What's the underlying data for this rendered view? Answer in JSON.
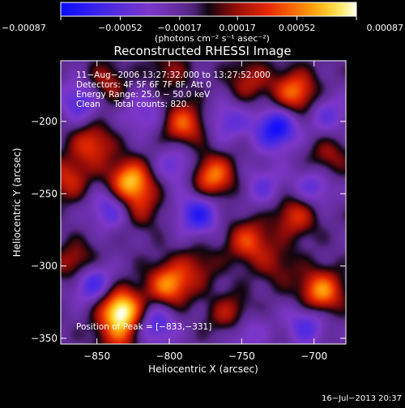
{
  "chart_data": {
    "type": "heatmap",
    "title": "Reconstructed RHESSI Image",
    "xlabel": "Heliocentric X (arcsec)",
    "ylabel": "Heliocentric Y (arcsec)",
    "xlim": [
      -875,
      -678
    ],
    "ylim": [
      -354,
      -158
    ],
    "x_ticks": [
      {
        "value": -850,
        "label": "−850"
      },
      {
        "value": -800,
        "label": "−800"
      },
      {
        "value": -750,
        "label": "−750"
      },
      {
        "value": -700,
        "label": "−700"
      }
    ],
    "y_ticks": [
      {
        "value": -200,
        "label": "−200"
      },
      {
        "value": -250,
        "label": "−250"
      },
      {
        "value": -300,
        "label": "−300"
      },
      {
        "value": -350,
        "label": "−350"
      }
    ],
    "colorbar": {
      "range": [
        -0.00087,
        0.00087
      ],
      "tick_values": [
        -0.00087,
        -0.00052,
        -0.00017,
        0.00017,
        0.00052,
        0.00087
      ],
      "tick_labels": [
        "−0.00087",
        "−0.00052",
        "−0.00017",
        "0.00017",
        "0.00052",
        "0.00087"
      ],
      "unit_label": "(photons cm⁻² s⁻¹ asec⁻²)"
    },
    "annotations": [
      "11−Aug−2006 13:27:32.000 to 13:27:52.000",
      "Detectors: 4F 5F 6F 7F 8F, Att 0",
      "Energy Range: 25.0 − 50.0 keV",
      "Clean     Total counts: 820."
    ],
    "peak_label": "Position of Peak = [−833,−331]",
    "peak": {
      "x": -833,
      "y": -331,
      "value": 0.00087
    },
    "sources": [
      {
        "x": -833,
        "y": -331,
        "value": 0.00087
      },
      {
        "x": -827,
        "y": -242,
        "value": 0.0007
      },
      {
        "x": -800,
        "y": -313,
        "value": 0.0006
      },
      {
        "x": -695,
        "y": -318,
        "value": 0.00062
      },
      {
        "x": -713,
        "y": -180,
        "value": 0.00055
      },
      {
        "x": -770,
        "y": -238,
        "value": 0.00058
      },
      {
        "x": -790,
        "y": -202,
        "value": 0.0005
      },
      {
        "x": -756,
        "y": -336,
        "value": 0.00052
      },
      {
        "x": -745,
        "y": -283,
        "value": 0.00044
      },
      {
        "x": -853,
        "y": -216,
        "value": 0.00042
      },
      {
        "x": -863,
        "y": -300,
        "value": 0.00046
      },
      {
        "x": -870,
        "y": -240,
        "value": 0.00036
      },
      {
        "x": -845,
        "y": -175,
        "value": 0.00034
      },
      {
        "x": -713,
        "y": -265,
        "value": 0.0004
      },
      {
        "x": -820,
        "y": -260,
        "value": 0.00026
      },
      {
        "x": -780,
        "y": -300,
        "value": 0.00024
      },
      {
        "x": -745,
        "y": -172,
        "value": 0.0003
      },
      {
        "x": -690,
        "y": -225,
        "value": 0.00028
      },
      {
        "x": -835,
        "y": -350,
        "value": 0.0003
      },
      {
        "x": -725,
        "y": -300,
        "value": 0.00022
      },
      {
        "x": -800,
        "y": -165,
        "value": 0.00022
      },
      {
        "x": -780,
        "y": -264,
        "value": -0.00048
      },
      {
        "x": -726,
        "y": -205,
        "value": -0.00058
      },
      {
        "x": -855,
        "y": -310,
        "value": -0.00055
      },
      {
        "x": -750,
        "y": -343,
        "value": -0.00045
      },
      {
        "x": -810,
        "y": -340,
        "value": -0.0004
      },
      {
        "x": -860,
        "y": -185,
        "value": -0.00042
      },
      {
        "x": -840,
        "y": -260,
        "value": -0.00038
      },
      {
        "x": -705,
        "y": -340,
        "value": -0.00036
      },
      {
        "x": -760,
        "y": -200,
        "value": -0.0003
      },
      {
        "x": -795,
        "y": -230,
        "value": -0.0003
      },
      {
        "x": -700,
        "y": -245,
        "value": -0.00032
      },
      {
        "x": -735,
        "y": -245,
        "value": -0.00026
      },
      {
        "x": -818,
        "y": -195,
        "value": -0.00026
      },
      {
        "x": -690,
        "y": -195,
        "value": -0.00028
      }
    ]
  },
  "footer": {
    "timestamp": "16−Jul−2013 20:37"
  }
}
